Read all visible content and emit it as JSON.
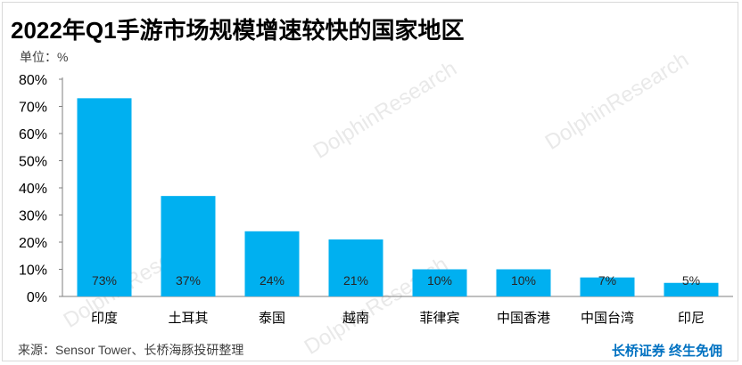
{
  "title": "2022年Q1手游市场规模增速较快的国家地区",
  "unit_label": "单位：%",
  "source": "来源：Sensor Tower、长桥海豚投研整理",
  "brand": "长桥证券 终生免佣",
  "watermark": "DolphinResearch",
  "colors": {
    "bar": "#00b0f0",
    "axis": "#7f7f7f",
    "text": "#000000"
  },
  "chart_data": {
    "type": "bar",
    "categories": [
      "印度",
      "土耳其",
      "泰国",
      "越南",
      "菲律宾",
      "中国香港",
      "中国台湾",
      "印尼"
    ],
    "values": [
      73,
      37,
      24,
      21,
      10,
      10,
      7,
      5
    ],
    "data_labels": [
      "73%",
      "37%",
      "24%",
      "21%",
      "10%",
      "10%",
      "7%",
      "5%"
    ],
    "yticks": [
      "0%",
      "10%",
      "20%",
      "30%",
      "40%",
      "50%",
      "60%",
      "70%",
      "80%"
    ],
    "ylim": [
      0,
      80
    ],
    "grid": false,
    "legend": "none"
  }
}
